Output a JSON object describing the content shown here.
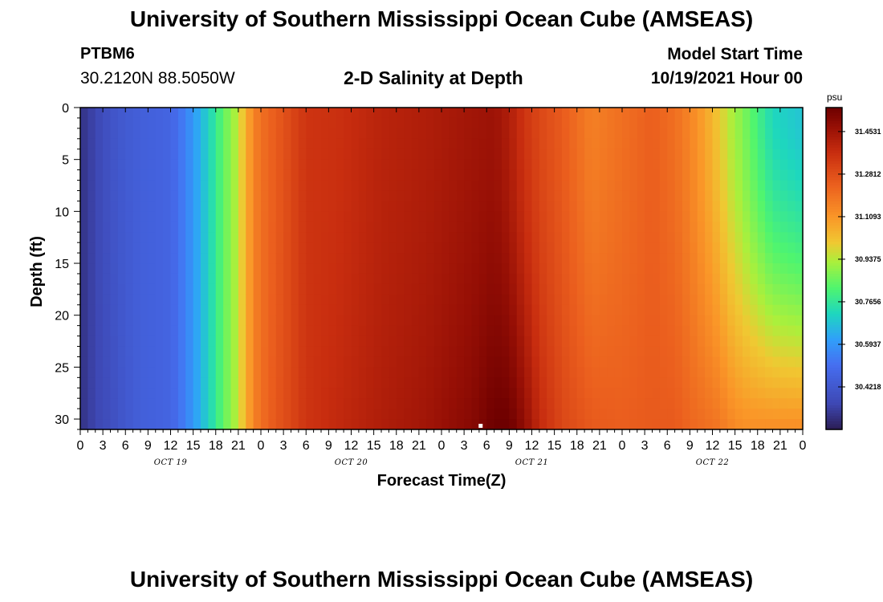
{
  "header": {
    "title": "University of Southern Mississippi Ocean Cube (AMSEAS)",
    "station": "PTBM6",
    "coords": "30.2120N  88.5050W",
    "subtitle": "2-D Salinity at Depth",
    "start_label": "Model Start Time",
    "start_value": "10/19/2021 Hour 00"
  },
  "footer": {
    "title": "University of Southern Mississippi Ocean Cube (AMSEAS)"
  },
  "chart_data": {
    "type": "heatmap",
    "title": "2-D Salinity at Depth",
    "xlabel": "Forecast Time(Z)",
    "ylabel": "Depth (ft)",
    "x_hours_range": [
      0,
      96
    ],
    "x_tick_labels": [
      "0",
      "3",
      "6",
      "9",
      "12",
      "15",
      "18",
      "21",
      "0",
      "3",
      "6",
      "9",
      "12",
      "15",
      "18",
      "21",
      "0",
      "3",
      "6",
      "9",
      "12",
      "15",
      "18",
      "21",
      "0",
      "3",
      "6",
      "9",
      "12",
      "15",
      "18",
      "21",
      "0"
    ],
    "date_labels": [
      "OCT 19",
      "OCT 20",
      "OCT 21",
      "OCT 22"
    ],
    "ylim": [
      0,
      31
    ],
    "y_ticks": [
      0,
      5,
      10,
      15,
      20,
      25,
      30
    ],
    "colorbar": {
      "unit": "psu",
      "range": [
        30.25,
        31.55
      ],
      "tick_values": [
        31.4531,
        31.2812,
        31.1093,
        30.9375,
        30.7656,
        30.5937,
        30.4218
      ],
      "tick_labels": [
        "31.4531",
        "31.2812",
        "31.1093",
        "30.9375",
        "30.7656",
        "30.5937",
        "30.4218"
      ]
    },
    "salinity_profile": {
      "hours": [
        0,
        2,
        4,
        6,
        8,
        12,
        14,
        16,
        18,
        19,
        21,
        22,
        23,
        24,
        25,
        26,
        27,
        28,
        30,
        34,
        40,
        46,
        52,
        55,
        57,
        59,
        61,
        64,
        68,
        72,
        76,
        79,
        81,
        83,
        85,
        86,
        88,
        90,
        92,
        94,
        96
      ],
      "surface_psu": [
        30.3,
        30.35,
        30.4,
        30.43,
        30.45,
        30.47,
        30.55,
        30.65,
        30.77,
        30.84,
        30.95,
        31.05,
        31.15,
        31.2,
        31.22,
        31.25,
        31.27,
        31.3,
        31.35,
        31.36,
        31.4,
        31.42,
        31.45,
        31.46,
        31.42,
        31.35,
        31.3,
        31.25,
        31.16,
        31.2,
        31.24,
        31.2,
        31.15,
        31.08,
        31.0,
        30.95,
        30.88,
        30.8,
        30.72,
        30.7,
        30.68
      ],
      "bottom_psu": [
        30.3,
        30.35,
        30.38,
        30.42,
        30.45,
        30.47,
        30.55,
        30.65,
        30.77,
        30.84,
        30.95,
        31.05,
        31.15,
        31.2,
        31.23,
        31.26,
        31.28,
        31.3,
        31.35,
        31.38,
        31.42,
        31.45,
        31.5,
        31.55,
        31.55,
        31.48,
        31.38,
        31.3,
        31.25,
        31.24,
        31.25,
        31.25,
        31.22,
        31.2,
        31.18,
        31.15,
        31.12,
        31.12,
        31.12,
        31.12,
        31.12
      ]
    }
  }
}
